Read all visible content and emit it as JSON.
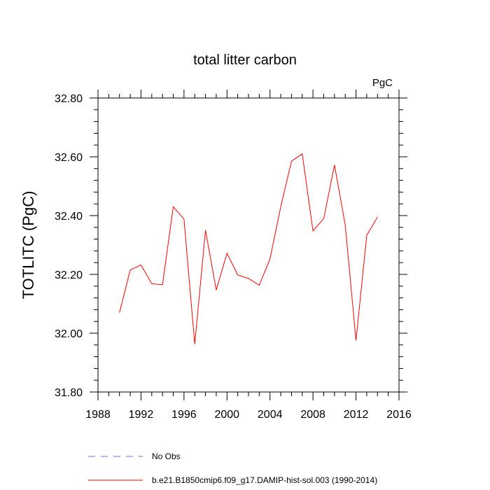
{
  "chart_data": {
    "type": "line",
    "title": "total litter carbon",
    "units_label": "PgC",
    "xlabel": "",
    "ylabel": "TOTLITC  (PgC)",
    "xlim": [
      1988,
      2016
    ],
    "ylim": [
      31.8,
      32.8
    ],
    "x_ticks": [
      "1988",
      "1992",
      "1996",
      "2000",
      "2004",
      "2008",
      "2012",
      "2016"
    ],
    "y_ticks": [
      "31.80",
      "32.00",
      "32.20",
      "32.40",
      "32.60",
      "32.80"
    ],
    "grid": false,
    "legend_position": "bottom-left",
    "x": [
      1990,
      1991,
      1992,
      1993,
      1994,
      1995,
      1996,
      1997,
      1998,
      1999,
      2000,
      2001,
      2002,
      2003,
      2004,
      2005,
      2006,
      2007,
      2008,
      2009,
      2010,
      2011,
      2012,
      2013,
      2014
    ],
    "series": [
      {
        "name": "b.e21.B1850cmip6.f09_g17.DAMIP-hist-sol.003 (1990-2014)",
        "color": "#ff0000",
        "style": "solid",
        "values": [
          32.07,
          32.215,
          32.232,
          32.168,
          32.165,
          32.43,
          32.388,
          31.963,
          32.35,
          32.147,
          32.272,
          32.198,
          32.186,
          32.163,
          32.253,
          32.43,
          32.585,
          32.61,
          32.348,
          32.39,
          32.572,
          32.368,
          31.975,
          32.333,
          32.395
        ]
      }
    ],
    "legend": [
      {
        "label": "No Obs",
        "color": "#6f6fff",
        "style": "dashed"
      },
      {
        "label": "b.e21.B1850cmip6.f09_g17.DAMIP-hist-sol.003 (1990-2014)",
        "color": "#ff0000",
        "style": "solid"
      }
    ]
  }
}
